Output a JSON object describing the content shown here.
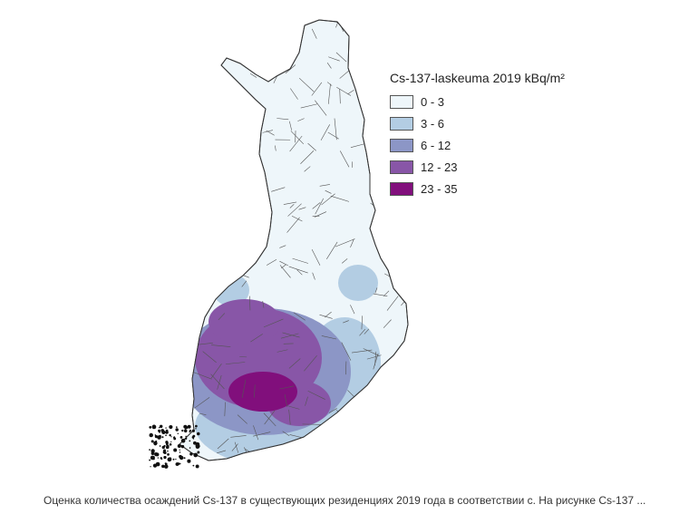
{
  "legend": {
    "title": "Cs-137-laskeuma 2019 kBq/m²",
    "classes": [
      {
        "label": "0 - 3",
        "color": "#eef6fa"
      },
      {
        "label": "3 - 6",
        "color": "#b3cde3"
      },
      {
        "label": "6 - 12",
        "color": "#8c96c6"
      },
      {
        "label": "12 - 23",
        "color": "#8856a7"
      },
      {
        "label": "23 - 35",
        "color": "#810f7c"
      }
    ]
  },
  "caption": "Оценка количества осаждений Cs-137 в существующих резиденциях 2019 года в соответствии с. На рисунке Cs-137 ..."
}
